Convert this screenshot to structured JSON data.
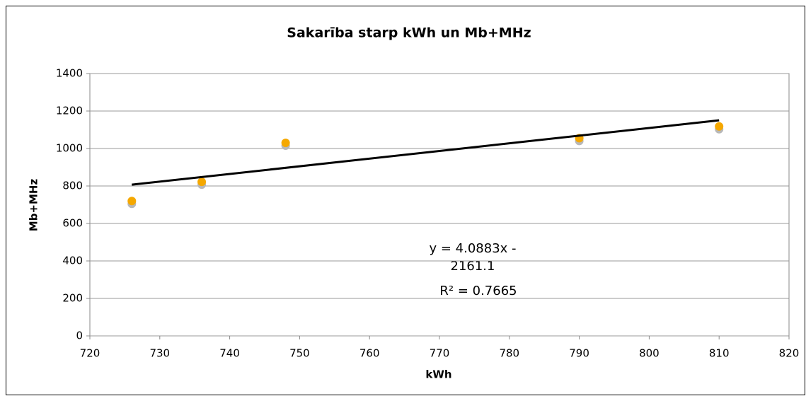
{
  "chart_data": {
    "type": "scatter",
    "title": "Sakarība starp kWh un Mb+MHz",
    "x_label": "kWh",
    "y_label": "Mb+MHz",
    "x": [
      726,
      736,
      748,
      790,
      810
    ],
    "values": [
      720,
      822,
      1030,
      1055,
      1118
    ],
    "color": "#f5a800",
    "trendline": {
      "x": [
        726,
        810
      ],
      "y": [
        806.9,
        1150.4
      ],
      "color": "#000000"
    },
    "annotations": [
      "y = 4.0883x -",
      "2161.1",
      "R² = 0.7665"
    ],
    "xlim": [
      720,
      820
    ],
    "xticks": [
      720,
      730,
      740,
      750,
      760,
      770,
      780,
      790,
      800,
      810,
      820
    ],
    "ylim": [
      0,
      1400
    ],
    "yticks": [
      0,
      200,
      400,
      600,
      800,
      1000,
      1200,
      1400
    ],
    "grid": true
  }
}
